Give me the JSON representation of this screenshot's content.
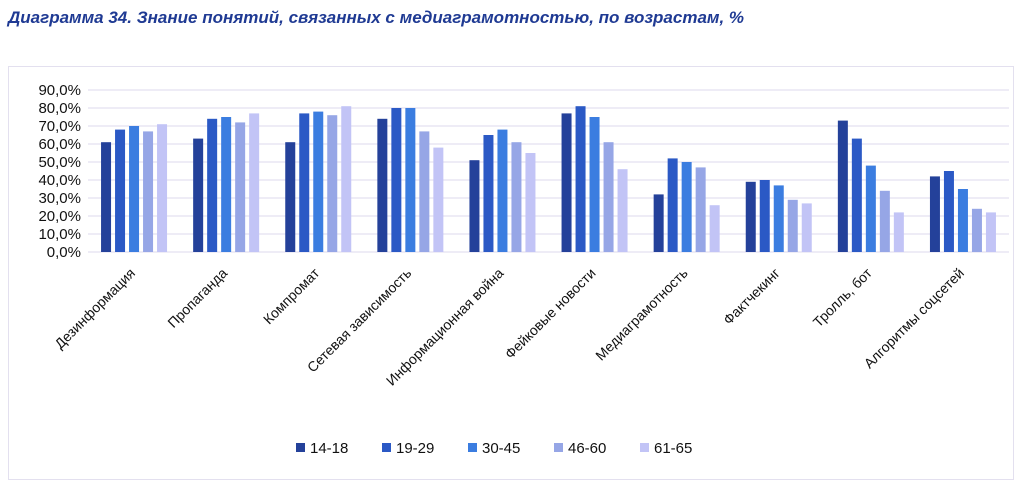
{
  "title": "Диаграмма 34. Знание понятий, связанных с медиаграмотностью, по возрастам, %",
  "colors": {
    "title": "#1f3a93",
    "grid": "#ddd8ee",
    "series": [
      "#24419a",
      "#2b59c5",
      "#3b7de0",
      "#96a6e6",
      "#c2c4f6"
    ]
  },
  "chart_data": {
    "type": "bar",
    "title": "Диаграмма 34. Знание понятий, связанных с медиаграмотностью, по возрастам, %",
    "xlabel": "",
    "ylabel": "",
    "ylim": [
      0,
      90
    ],
    "y_ticks": [
      "0,0%",
      "10,0%",
      "20,0%",
      "30,0%",
      "40,0%",
      "50,0%",
      "60,0%",
      "70,0%",
      "80,0%",
      "90,0%"
    ],
    "grid": true,
    "legend": "bottom",
    "categories": [
      "Дезинформация",
      "Пропаганда",
      "Компромат",
      "Сетевая зависимость",
      "Информационная война",
      "Фейковые новости",
      "Медиаграмотность",
      "Фактчекинг",
      "Тролль, бот",
      "Алгоритмы соцсетей"
    ],
    "series": [
      {
        "name": "14-18",
        "values": [
          61,
          63,
          61,
          74,
          51,
          77,
          32,
          39,
          73,
          42
        ]
      },
      {
        "name": "19-29",
        "values": [
          68,
          74,
          77,
          80,
          65,
          81,
          52,
          40,
          63,
          45
        ]
      },
      {
        "name": "30-45",
        "values": [
          70,
          75,
          78,
          80,
          68,
          75,
          50,
          37,
          48,
          35
        ]
      },
      {
        "name": "46-60",
        "values": [
          67,
          72,
          76,
          67,
          61,
          61,
          47,
          29,
          34,
          24
        ]
      },
      {
        "name": "61-65",
        "values": [
          71,
          77,
          81,
          58,
          55,
          46,
          26,
          27,
          22,
          22
        ]
      }
    ]
  }
}
